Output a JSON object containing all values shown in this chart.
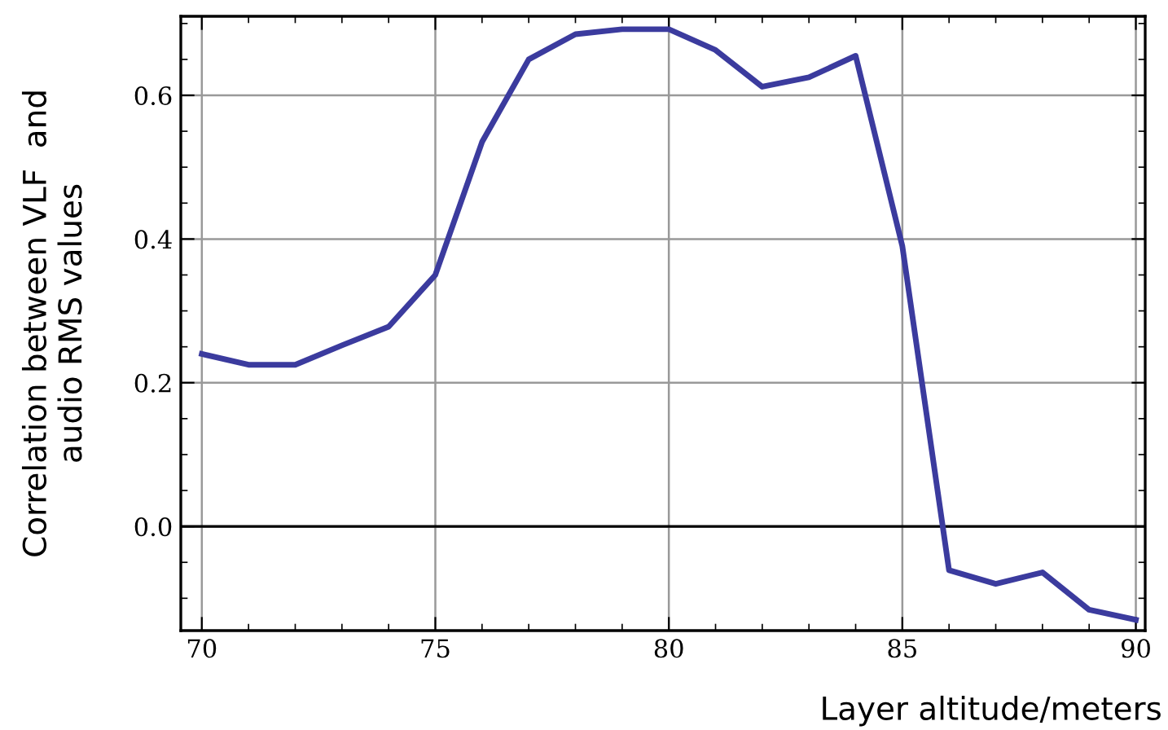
{
  "chart_data": {
    "type": "line",
    "xlabel": "Layer altitude/meters",
    "ylabel": "Correlation between VLF  and\naudio RMS values",
    "x": [
      70,
      71,
      72,
      73,
      74,
      75,
      76,
      77,
      78,
      79,
      80,
      81,
      82,
      83,
      84,
      85,
      86,
      87,
      88,
      89,
      90
    ],
    "series": [
      {
        "color": "#3b3b9e",
        "values": [
          0.24,
          0.225,
          0.225,
          0.252,
          0.278,
          0.35,
          0.535,
          0.65,
          0.685,
          0.692,
          0.692,
          0.663,
          0.612,
          0.625,
          0.655,
          0.39,
          -0.061,
          -0.08,
          -0.064,
          -0.116,
          -0.13
        ]
      }
    ],
    "xlim": [
      69.55,
      90.2
    ],
    "ylim": [
      -0.145,
      0.71
    ],
    "xticks": [
      70,
      75,
      80,
      85,
      90
    ],
    "yticks": [
      {
        "value": 0.0,
        "label": "0.0"
      },
      {
        "value": 0.2,
        "label": "0.2"
      },
      {
        "value": 0.4,
        "label": "0.4"
      },
      {
        "value": 0.6,
        "label": "0.6"
      }
    ],
    "ref_lines": [
      {
        "axis": "y",
        "value": 0.0,
        "label": null,
        "color": "#000000"
      }
    ],
    "grid": true,
    "marker": "none",
    "line_style": "solid",
    "legend": false
  }
}
